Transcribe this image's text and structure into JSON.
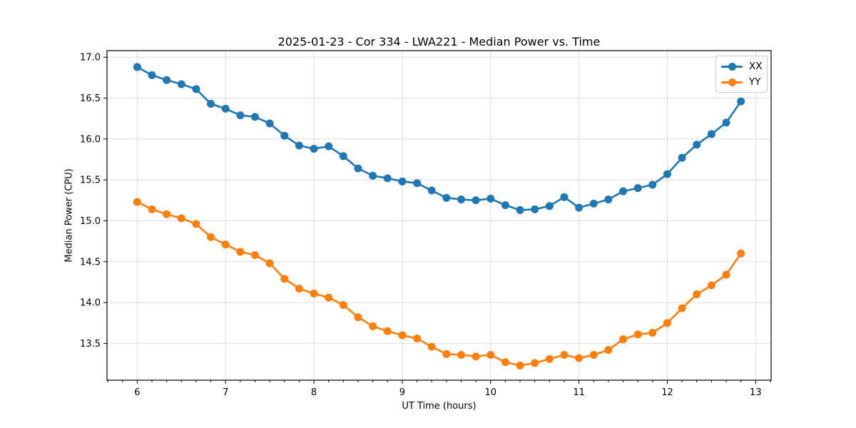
{
  "chart_data": {
    "type": "line",
    "title": "2025-01-23 - Cor 334 - LWA221 - Median Power vs. Time",
    "xlabel": "UT Time (hours)",
    "ylabel": "Median Power (CPU)",
    "xlim": [
      5.658,
      13.175
    ],
    "ylim": [
      13.05,
      17.08
    ],
    "x_ticks": [
      6,
      7,
      8,
      9,
      10,
      11,
      12,
      13
    ],
    "minor_x_tick_step": 0.1666667,
    "y_ticks": [
      13.5,
      14.0,
      14.5,
      15.0,
      15.5,
      16.0,
      16.5,
      17.0
    ],
    "grid": true,
    "legend_position": "upper right",
    "x": [
      6.0,
      6.167,
      6.333,
      6.5,
      6.667,
      6.833,
      7.0,
      7.167,
      7.333,
      7.5,
      7.667,
      7.833,
      8.0,
      8.167,
      8.333,
      8.5,
      8.667,
      8.833,
      9.0,
      9.167,
      9.333,
      9.5,
      9.667,
      9.833,
      10.0,
      10.167,
      10.333,
      10.5,
      10.667,
      10.833,
      11.0,
      11.167,
      11.333,
      11.5,
      11.667,
      11.833,
      12.0,
      12.167,
      12.333,
      12.5,
      12.667,
      12.833
    ],
    "series": [
      {
        "name": "XX",
        "color": "#1f77b4",
        "values": [
          16.88,
          16.78,
          16.72,
          16.67,
          16.61,
          16.43,
          16.37,
          16.29,
          16.27,
          16.19,
          16.04,
          15.92,
          15.88,
          15.91,
          15.79,
          15.64,
          15.55,
          15.52,
          15.48,
          15.46,
          15.37,
          15.28,
          15.26,
          15.25,
          15.27,
          15.19,
          15.13,
          15.14,
          15.18,
          15.29,
          15.16,
          15.21,
          15.26,
          15.36,
          15.4,
          15.44,
          15.57,
          15.77,
          15.93,
          16.06,
          16.2,
          16.46
        ]
      },
      {
        "name": "YY",
        "color": "#ff7f0e",
        "values": [
          15.23,
          15.14,
          15.08,
          15.03,
          14.96,
          14.8,
          14.71,
          14.62,
          14.58,
          14.48,
          14.29,
          14.17,
          14.11,
          14.06,
          13.97,
          13.82,
          13.71,
          13.65,
          13.6,
          13.56,
          13.46,
          13.37,
          13.36,
          13.34,
          13.36,
          13.27,
          13.23,
          13.26,
          13.31,
          13.36,
          13.32,
          13.36,
          13.42,
          13.55,
          13.61,
          13.63,
          13.75,
          13.93,
          14.1,
          14.21,
          14.34,
          14.6
        ]
      }
    ],
    "colors": {
      "grid": "#dddddd",
      "spine": "#000000",
      "background": "#ffffff",
      "legend_border": "#cccccc"
    }
  }
}
